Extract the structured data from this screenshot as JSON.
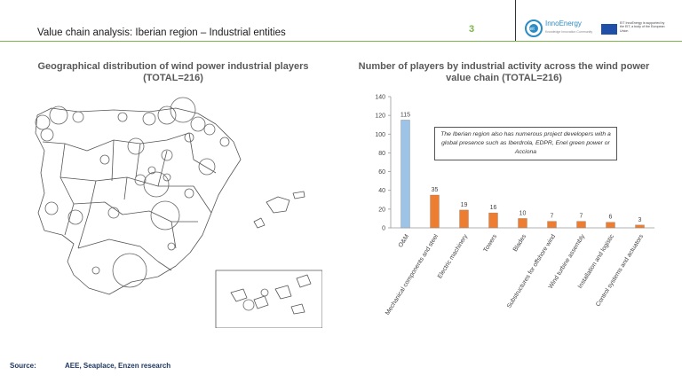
{
  "header": {
    "title": "Value chain analysis: Iberian region – Industrial entities",
    "page_number": "3",
    "logo_name": "InnoEnergy",
    "logo_tagline": "Knowledge Innovation Community",
    "eu_text": "EIT InnoEnergy is supported by the EIT, a body of the European Union"
  },
  "map": {
    "title": "Geographical distribution of wind power industrial players (TOTAL=216)"
  },
  "chart_data": {
    "type": "bar",
    "title": "Number of players by industrial activity across the wind power value chain (TOTAL=216)",
    "categories": [
      "O&M",
      "Mechanical components and steel",
      "Electric machinery",
      "Towers",
      "Blades",
      "Substructures for offshore wind",
      "Wind turbine assembly",
      "Installation and logistic",
      "Control systems and actuators"
    ],
    "values": [
      115,
      35,
      19,
      16,
      10,
      7,
      7,
      6,
      3
    ],
    "bar_colors": [
      "#9dc3e6",
      "#ed7d31",
      "#ed7d31",
      "#ed7d31",
      "#ed7d31",
      "#ed7d31",
      "#ed7d31",
      "#ed7d31",
      "#ed7d31"
    ],
    "yticks": [
      0,
      20,
      40,
      60,
      80,
      100,
      120,
      140
    ],
    "ylim": [
      0,
      140
    ],
    "grid": false,
    "annotation": "The Iberian region also has numerous project developers with a global presence such as Iberdrola, EDPR, Enel green power or Acciona"
  },
  "footer": {
    "source_label": "Source:",
    "source_text": "AEE, Seaplace, Enzen research"
  },
  "colors": {
    "accent": "#7ab648",
    "om_bar": "#9dc3e6",
    "other_bars": "#ed7d31",
    "source_text": "#1f3864"
  }
}
